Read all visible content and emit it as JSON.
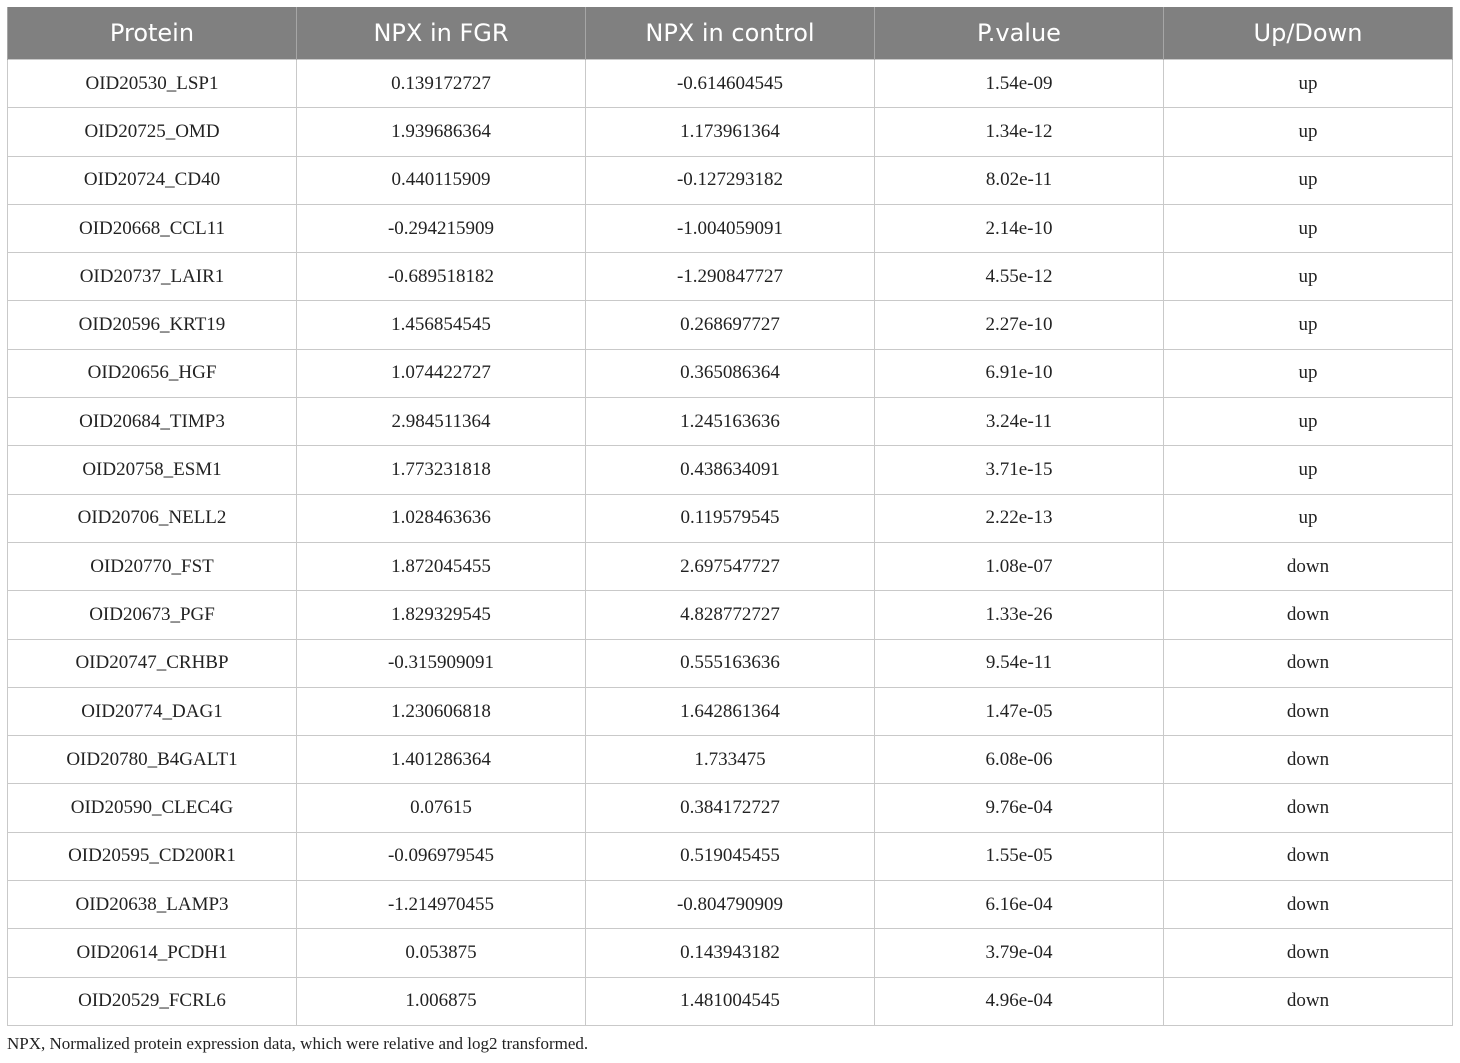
{
  "table": {
    "headers": [
      "Protein",
      "NPX in FGR",
      "NPX in control",
      "P.value",
      "Up/Down"
    ],
    "rows": [
      [
        "OID20530_LSP1",
        "0.139172727",
        "-0.614604545",
        "1.54e-09",
        "up"
      ],
      [
        "OID20725_OMD",
        "1.939686364",
        "1.173961364",
        "1.34e-12",
        "up"
      ],
      [
        "OID20724_CD40",
        "0.440115909",
        "-0.127293182",
        "8.02e-11",
        "up"
      ],
      [
        "OID20668_CCL11",
        "-0.294215909",
        "-1.004059091",
        "2.14e-10",
        "up"
      ],
      [
        "OID20737_LAIR1",
        "-0.689518182",
        "-1.290847727",
        "4.55e-12",
        "up"
      ],
      [
        "OID20596_KRT19",
        "1.456854545",
        "0.268697727",
        "2.27e-10",
        "up"
      ],
      [
        "OID20656_HGF",
        "1.074422727",
        "0.365086364",
        "6.91e-10",
        "up"
      ],
      [
        "OID20684_TIMP3",
        "2.984511364",
        "1.245163636",
        "3.24e-11",
        "up"
      ],
      [
        "OID20758_ESM1",
        "1.773231818",
        "0.438634091",
        "3.71e-15",
        "up"
      ],
      [
        "OID20706_NELL2",
        "1.028463636",
        "0.119579545",
        "2.22e-13",
        "up"
      ],
      [
        "OID20770_FST",
        "1.872045455",
        "2.697547727",
        "1.08e-07",
        "down"
      ],
      [
        "OID20673_PGF",
        "1.829329545",
        "4.828772727",
        "1.33e-26",
        "down"
      ],
      [
        "OID20747_CRHBP",
        "-0.315909091",
        "0.555163636",
        "9.54e-11",
        "down"
      ],
      [
        "OID20774_DAG1",
        "1.230606818",
        "1.642861364",
        "1.47e-05",
        "down"
      ],
      [
        "OID20780_B4GALT1",
        "1.401286364",
        "1.733475",
        "6.08e-06",
        "down"
      ],
      [
        "OID20590_CLEC4G",
        "0.07615",
        "0.384172727",
        "9.76e-04",
        "down"
      ],
      [
        "OID20595_CD200R1",
        "-0.096979545",
        "0.519045455",
        "1.55e-05",
        "down"
      ],
      [
        "OID20638_LAMP3",
        "-1.214970455",
        "-0.804790909",
        "6.16e-04",
        "down"
      ],
      [
        "OID20614_PCDH1",
        "0.053875",
        "0.143943182",
        "3.79e-04",
        "down"
      ],
      [
        "OID20529_FCRL6",
        "1.006875",
        "1.481004545",
        "4.96e-04",
        "down"
      ]
    ]
  },
  "footnote": "NPX, Normalized protein expression data, which were relative and log2 transformed.",
  "colors": {
    "header_background": "#808080",
    "header_text": "#ffffff",
    "cell_border": "#c9c9c9"
  }
}
